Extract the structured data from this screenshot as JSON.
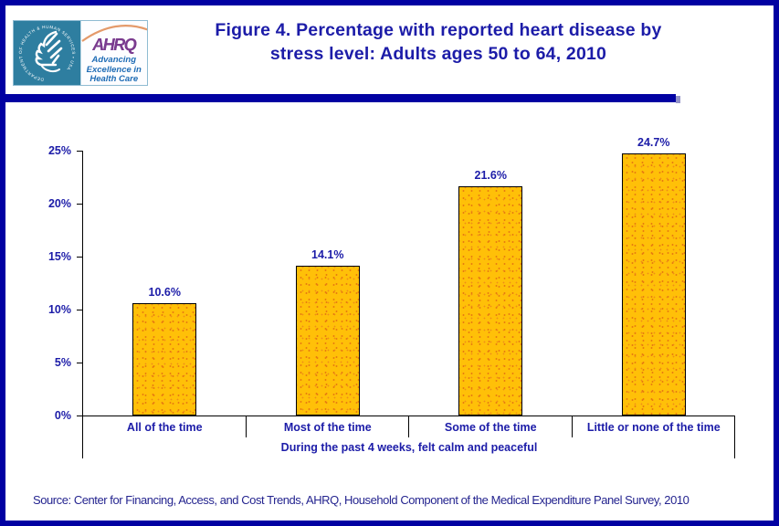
{
  "header": {
    "logo": {
      "hhs_ring_text": "DEPARTMENT OF HEALTH & HUMAN SERVICES • USA",
      "ahrq_acronym": "AHRQ",
      "ahrq_tagline_line1": "Advancing",
      "ahrq_tagline_line2": "Excellence in",
      "ahrq_tagline_line3": "Health Care"
    },
    "title_line1": "Figure 4. Percentage with reported heart disease by",
    "title_line2": "stress level: Adults ages 50 to 64, 2010"
  },
  "chart_data": {
    "type": "bar",
    "title": "Figure 4. Percentage with reported heart disease by stress level: Adults ages 50 to 64, 2010",
    "categories": [
      "All of the time",
      "Most of the time",
      "Some of the time",
      "Little or none of the time"
    ],
    "values": [
      10.6,
      14.1,
      21.6,
      24.7
    ],
    "value_labels": [
      "10.6%",
      "14.1%",
      "21.6%",
      "24.7%"
    ],
    "xlabel": "During the past 4 weeks, felt calm and peaceful",
    "ylabel": "",
    "ylim": [
      0,
      25
    ],
    "ytick_interval": 5,
    "ytick_labels": [
      "0%",
      "5%",
      "10%",
      "15%",
      "20%",
      "25%"
    ],
    "grid": false,
    "legend": false,
    "bar_fill_color": "#FFC008",
    "bar_dot_color": "#E87E10",
    "bar_border_color": "#000000",
    "text_color": "#1C1CA8"
  },
  "footer": {
    "source": "Source: Center for Financing, Access, and Cost Trends, AHRQ, Household Component of the Medical Expenditure Panel Survey, 2010"
  }
}
